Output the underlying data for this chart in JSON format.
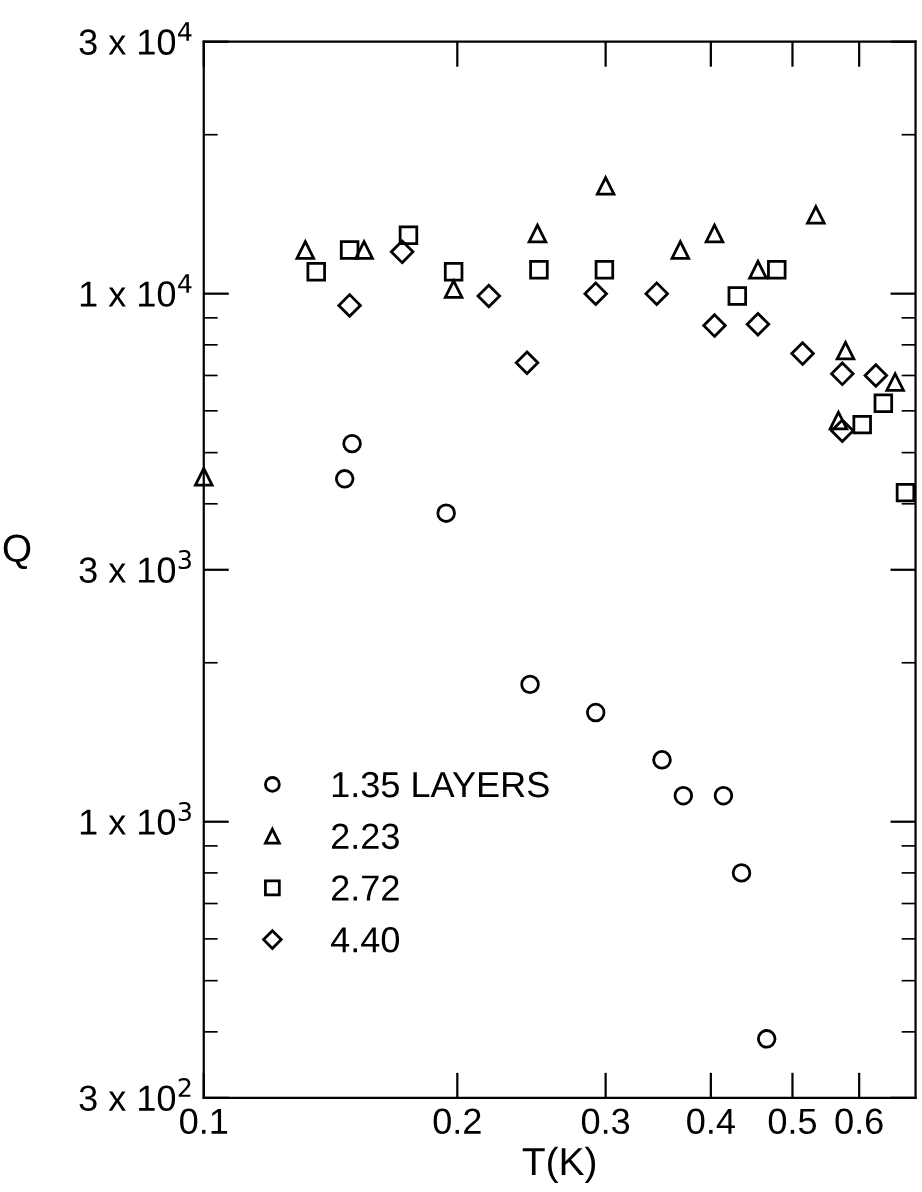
{
  "chart_data": {
    "type": "scatter",
    "xlabel": "T(K)",
    "ylabel": "Q",
    "log": "xy",
    "xlim": [
      0.1,
      0.7
    ],
    "ylim": [
      300,
      30000
    ],
    "xticks": [
      0.1,
      0.2,
      0.3,
      0.4,
      0.5,
      0.6
    ],
    "yticks": [
      {
        "value": 300,
        "label": "3 x 10$^{2}$"
      },
      {
        "value": 1000,
        "label": "1 x 10$^{3}$"
      },
      {
        "value": 3000,
        "label": "3 x 10$^{3}$"
      },
      {
        "value": 10000,
        "label": "1 x 10$^{4}$"
      },
      {
        "value": 30000,
        "label": "3 x 10$^{4}$"
      }
    ],
    "grid": false,
    "legend": "bottom left",
    "series": [
      {
        "name": "1.35 LAYERS",
        "color": "#000000",
        "marker": "circle",
        "x": [
          0.147,
          0.15,
          0.194,
          0.244,
          0.292,
          0.35,
          0.371,
          0.414,
          0.435,
          0.466
        ],
        "values": [
          4460,
          5200,
          3840,
          1820,
          1610,
          1310,
          1120,
          1120,
          800,
          388
        ]
      },
      {
        "name": "2.23",
        "color": "#000000",
        "marker": "triangle",
        "x": [
          0.1,
          0.132,
          0.155,
          0.198,
          0.249,
          0.3,
          0.368,
          0.404,
          0.455,
          0.533,
          0.578,
          0.567,
          0.662
        ],
        "values": [
          4500,
          12100,
          12100,
          10200,
          13000,
          16000,
          12100,
          13000,
          11100,
          14100,
          7800,
          5750,
          6800
        ]
      },
      {
        "name": "2.72",
        "color": "#000000",
        "marker": "square",
        "x": [
          0.136,
          0.149,
          0.175,
          0.198,
          0.25,
          0.299,
          0.43,
          0.479,
          0.605,
          0.641,
          0.681
        ],
        "values": [
          11000,
          12100,
          12900,
          11000,
          11100,
          11100,
          9900,
          11100,
          5650,
          6200,
          4200
        ]
      },
      {
        "name": "4.40",
        "color": "#000000",
        "marker": "diamond",
        "x": [
          0.149,
          0.172,
          0.218,
          0.242,
          0.292,
          0.345,
          0.404,
          0.455,
          0.514,
          0.573,
          0.628,
          0.573
        ],
        "values": [
          9500,
          12000,
          9900,
          7400,
          10000,
          10000,
          8700,
          8750,
          7700,
          7050,
          7000,
          5500
        ]
      }
    ]
  }
}
